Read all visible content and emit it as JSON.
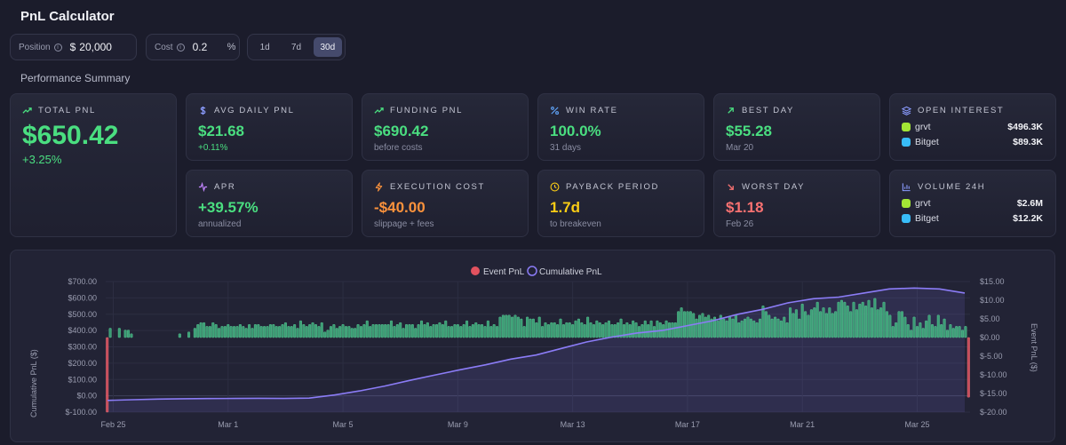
{
  "header": {
    "title": "PnL Calculator"
  },
  "controls": {
    "position": {
      "label": "Position",
      "currency": "$",
      "value": "20,000"
    },
    "cost": {
      "label": "Cost",
      "value": "0.2",
      "unit": "%"
    },
    "ranges": [
      {
        "label": "1d",
        "active": false
      },
      {
        "label": "7d",
        "active": false
      },
      {
        "label": "30d",
        "active": true
      }
    ]
  },
  "summary": {
    "heading": "Performance Summary",
    "total_pnl": {
      "label": "TOTAL PNL",
      "value": "$650.42",
      "sub": "+3.25%"
    },
    "avg_daily": {
      "label": "AVG DAILY PNL",
      "value": "$21.68",
      "sub": "+0.11%"
    },
    "funding": {
      "label": "FUNDING PNL",
      "value": "$690.42",
      "sub": "before costs"
    },
    "win_rate": {
      "label": "WIN RATE",
      "value": "100.0%",
      "sub": "31 days"
    },
    "best_day": {
      "label": "BEST DAY",
      "value": "$55.28",
      "sub": "Mar 20"
    },
    "apr": {
      "label": "APR",
      "value": "+39.57%",
      "sub": "annualized"
    },
    "execution": {
      "label": "EXECUTION COST",
      "value": "-$40.00",
      "sub": "slippage + fees"
    },
    "payback": {
      "label": "PAYBACK PERIOD",
      "value": "1.7d",
      "sub": "to breakeven"
    },
    "worst_day": {
      "label": "WORST DAY",
      "value": "$1.18",
      "sub": "Feb 26"
    },
    "open_interest": {
      "label": "OPEN INTEREST",
      "rows": [
        {
          "name": "grvt",
          "value": "$496.3K"
        },
        {
          "name": "Bitget",
          "value": "$89.3K"
        }
      ]
    },
    "volume": {
      "label": "VOLUME 24H",
      "rows": [
        {
          "name": "grvt",
          "value": "$2.6M"
        },
        {
          "name": "Bitget",
          "value": "$12.2K"
        }
      ]
    }
  },
  "colors": {
    "green": "#4ade80",
    "red": "#f87171",
    "purple": "#8b7cf6",
    "bar_green": "#3fb27f",
    "bar_red": "#e2525f"
  },
  "chart_data": {
    "type": "bar+line",
    "legend": [
      "Event PnL",
      "Cumulative PnL"
    ],
    "ylabel_left": "Cumulative PnL ($)",
    "ylabel_right": "Event PnL ($)",
    "left_ticks": [
      "$700.00",
      "$600.00",
      "$500.00",
      "$400.00",
      "$300.00",
      "$200.00",
      "$100.00",
      "$0.00",
      "$-100.00"
    ],
    "right_ticks": [
      "$15.00",
      "$10.00",
      "$5.00",
      "$0.00",
      "$-5.00",
      "$-10.00",
      "$-15.00",
      "$-20.00"
    ],
    "ylim_left": [
      -100,
      700
    ],
    "ylim_right": [
      -20,
      15
    ],
    "x_ticks": [
      "Feb 25",
      "Mar 1",
      "Mar 5",
      "Mar 9",
      "Mar 13",
      "Mar 17",
      "Mar 21",
      "Mar 25"
    ],
    "x_tick_index": [
      2,
      40,
      78,
      116,
      154,
      192,
      230,
      268
    ],
    "event_pnl": [
      -20,
      2.5,
      0,
      0,
      2.5,
      0,
      2.0,
      2.0,
      1.0,
      0,
      0,
      0,
      0,
      0,
      0,
      0,
      0,
      0,
      0,
      0,
      0,
      0,
      0,
      0,
      1.0,
      0,
      0,
      1.5,
      0,
      2.5,
      3.5,
      4.0,
      4.0,
      3.0,
      3.0,
      4.0,
      3.5,
      2.5,
      3.0,
      3.0,
      3.5,
      3.0,
      3.0,
      3.0,
      3.5,
      3.0,
      2.5,
      3.5,
      2.5,
      3.5,
      3.5,
      3.0,
      3.0,
      3.0,
      3.5,
      3.5,
      3.0,
      3.0,
      3.5,
      4.0,
      3.0,
      3.0,
      3.5,
      2.5,
      4.5,
      3.5,
      3.0,
      3.5,
      4.0,
      3.5,
      3.0,
      4.0,
      1.5,
      2.0,
      3.0,
      3.5,
      2.5,
      3.0,
      3.5,
      3.0,
      3.0,
      2.5,
      2.5,
      3.5,
      3.0,
      3.5,
      4.5,
      3.0,
      3.5,
      3.5,
      3.5,
      3.5,
      3.5,
      3.5,
      4.5,
      3.0,
      3.5,
      4.0,
      2.5,
      3.5,
      3.5,
      3.5,
      2.5,
      3.5,
      4.5,
      3.5,
      4.0,
      3.0,
      3.5,
      3.5,
      4.0,
      3.5,
      4.5,
      3.0,
      3.0,
      3.5,
      3.5,
      3.0,
      3.5,
      4.5,
      3.0,
      3.5,
      4.0,
      3.5,
      3.5,
      3.0,
      4.5,
      3.0,
      3.5,
      3.0,
      5.5,
      6.0,
      6.0,
      6.0,
      5.5,
      6.0,
      5.5,
      5.0,
      3.0,
      5.5,
      5.0,
      5.0,
      4.0,
      5.5,
      3.0,
      4.0,
      3.5,
      4.0,
      4.0,
      3.5,
      5.0,
      3.5,
      4.0,
      4.0,
      3.5,
      4.5,
      5.0,
      4.0,
      3.5,
      5.5,
      4.0,
      3.5,
      4.5,
      4.0,
      3.5,
      4.0,
      4.5,
      3.5,
      3.5,
      4.0,
      5.0,
      3.5,
      4.0,
      3.5,
      4.5,
      4.0,
      3.0,
      3.5,
      4.5,
      3.5,
      4.5,
      3.0,
      4.5,
      4.0,
      3.5,
      4.5,
      4.0,
      4.0,
      4.0,
      7.0,
      8.0,
      7.0,
      7.0,
      7.0,
      6.5,
      5.0,
      6.0,
      6.5,
      5.5,
      6.0,
      5.0,
      5.5,
      4.5,
      6.0,
      5.0,
      4.5,
      5.5,
      5.0,
      6.0,
      4.0,
      4.5,
      5.0,
      5.5,
      5.0,
      4.5,
      4.0,
      5.0,
      8.5,
      7.0,
      6.0,
      5.0,
      5.5,
      5.0,
      4.5,
      5.5,
      4.0,
      8.0,
      6.5,
      7.5,
      5.0,
      9.0,
      7.0,
      6.0,
      7.5,
      8.0,
      9.5,
      7.0,
      8.0,
      6.5,
      8.0,
      6.5,
      7.0,
      9.5,
      10.0,
      9.5,
      8.5,
      7.0,
      9.5,
      7.5,
      9.0,
      9.5,
      8.5,
      10.0,
      8.0,
      10.5,
      7.5,
      8.0,
      9.5,
      7.0,
      6.0,
      3.0,
      4.0,
      7.0,
      7.0,
      5.5,
      3.5,
      2.0,
      5.5,
      3.0,
      4.0,
      2.5,
      4.5,
      6.0,
      3.5,
      3.0,
      6.0,
      3.5,
      5.0,
      2.0,
      3.5,
      2.5,
      3.0,
      3.0,
      2.0,
      3.0,
      -16
    ],
    "cumulative_pnl": [
      -28,
      -24,
      -20,
      -18,
      -17,
      -16,
      -15,
      -16,
      -14,
      5,
      30,
      60,
      95,
      128,
      160,
      190,
      225,
      250,
      290,
      330,
      360,
      385,
      400,
      430,
      460,
      500,
      530,
      570,
      595,
      605,
      630,
      655,
      660,
      655,
      630
    ]
  }
}
